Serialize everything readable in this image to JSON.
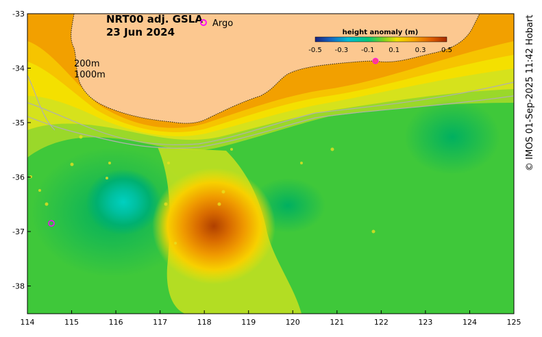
{
  "map": {
    "product": "NRT00 adj. GSLA",
    "date": "23 Jun 2024",
    "argo_label": "Argo",
    "depth_labels": [
      "200m",
      "1000m"
    ],
    "credit": "© IMOS 01-Sep-2025 11:42 Hobart",
    "x_ticks": [
      "114",
      "115",
      "116",
      "117",
      "118",
      "119",
      "120",
      "121",
      "122",
      "123",
      "124",
      "125"
    ],
    "y_ticks": [
      "-33",
      "-34",
      "-35",
      "-36",
      "-37",
      "-38"
    ],
    "colorbar": {
      "title": "height anomaly (m)",
      "tick_labels": [
        "-0.5",
        "-0.3",
        "-0.1",
        "0.1",
        "0.3",
        "0.5"
      ],
      "colors": [
        "#1a237e",
        "#1565c0",
        "#00bcd4",
        "#00c87a",
        "#7ed321",
        "#f0e000",
        "#f7a500",
        "#e06000",
        "#a52a00"
      ]
    },
    "colors": {
      "land": "#fcc890",
      "contour_line": "#aaaaaa",
      "argo_marker": "#ff00ff"
    }
  }
}
